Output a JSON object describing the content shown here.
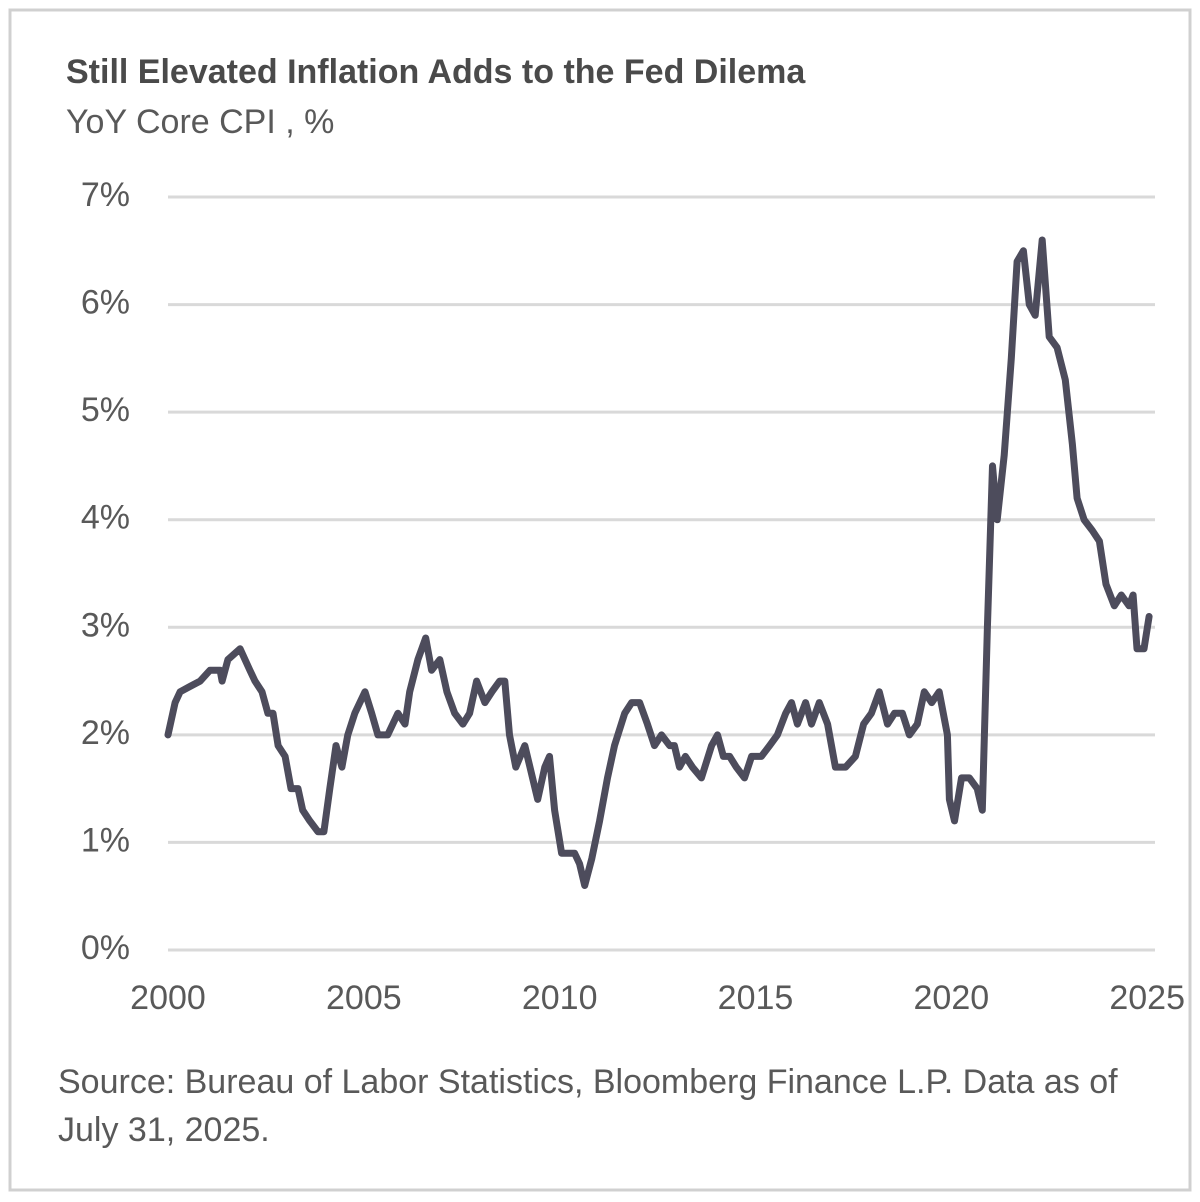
{
  "chart_data": {
    "type": "line",
    "title": "Still Elevated Inflation Adds to the Fed Dilema",
    "subtitle": "YoY Core CPI , %",
    "source": "Source: Bureau of Labor Statistics, Bloomberg Finance L.P. Data as of July 31, 2025.",
    "x": [
      2000,
      2000.18,
      2000.31,
      2000.56,
      2000.82,
      2001.07,
      2001.33,
      2001.38,
      2001.53,
      2001.84,
      2002.09,
      2002.22,
      2002.4,
      2002.55,
      2002.68,
      2002.81,
      2002.99,
      2003.14,
      2003.32,
      2003.44,
      2003.62,
      2003.83,
      2003.98,
      2004.13,
      2004.29,
      2004.44,
      2004.59,
      2004.77,
      2005.03,
      2005.2,
      2005.36,
      2005.61,
      2005.87,
      2006.05,
      2006.17,
      2006.38,
      2006.58,
      2006.73,
      2006.94,
      2007.12,
      2007.32,
      2007.53,
      2007.7,
      2007.88,
      2008.09,
      2008.27,
      2008.47,
      2008.6,
      2008.72,
      2008.88,
      2009.11,
      2009.44,
      2009.62,
      2009.74,
      2009.87,
      2010.05,
      2010.38,
      2010.51,
      2010.64,
      2010.82,
      2011.02,
      2011.22,
      2011.4,
      2011.66,
      2011.84,
      2012.04,
      2012.24,
      2012.42,
      2012.6,
      2012.81,
      2012.93,
      2013.06,
      2013.21,
      2013.39,
      2013.62,
      2013.88,
      2014.03,
      2014.18,
      2014.34,
      2014.51,
      2014.72,
      2014.9,
      2015.15,
      2015.36,
      2015.56,
      2015.77,
      2015.92,
      2016.07,
      2016.28,
      2016.43,
      2016.63,
      2016.84,
      2017.04,
      2017.3,
      2017.55,
      2017.76,
      2017.96,
      2018.16,
      2018.37,
      2018.55,
      2018.75,
      2018.93,
      2019.13,
      2019.31,
      2019.5,
      2019.69,
      2019.9,
      2019.95,
      2020.08,
      2020.26,
      2020.46,
      2020.66,
      2020.79,
      2020.92,
      2021.05,
      2021.17,
      2021.35,
      2021.53,
      2021.68,
      2021.84,
      2021.99,
      2022.14,
      2022.32,
      2022.5,
      2022.7,
      2022.91,
      2023.09,
      2023.21,
      2023.39,
      2023.6,
      2023.78,
      2023.95,
      2024.16,
      2024.34,
      2024.54,
      2024.64,
      2024.74,
      2024.92,
      2025.05
    ],
    "values": [
      2.0,
      2.3,
      2.4,
      2.45,
      2.5,
      2.6,
      2.6,
      2.5,
      2.7,
      2.8,
      2.6,
      2.5,
      2.4,
      2.2,
      2.2,
      1.9,
      1.8,
      1.5,
      1.5,
      1.3,
      1.2,
      1.1,
      1.1,
      1.5,
      1.9,
      1.7,
      2.0,
      2.2,
      2.4,
      2.2,
      2.0,
      2.0,
      2.2,
      2.1,
      2.4,
      2.7,
      2.9,
      2.6,
      2.7,
      2.4,
      2.2,
      2.1,
      2.2,
      2.5,
      2.3,
      2.4,
      2.5,
      2.5,
      2.0,
      1.7,
      1.9,
      1.4,
      1.7,
      1.8,
      1.3,
      0.9,
      0.9,
      0.8,
      0.6,
      0.85,
      1.2,
      1.6,
      1.9,
      2.2,
      2.3,
      2.3,
      2.1,
      1.9,
      2.0,
      1.9,
      1.9,
      1.7,
      1.8,
      1.7,
      1.6,
      1.9,
      2.0,
      1.8,
      1.8,
      1.7,
      1.6,
      1.8,
      1.8,
      1.9,
      2.0,
      2.2,
      2.3,
      2.1,
      2.3,
      2.1,
      2.3,
      2.1,
      1.7,
      1.7,
      1.8,
      2.1,
      2.2,
      2.4,
      2.1,
      2.2,
      2.2,
      2.0,
      2.1,
      2.4,
      2.3,
      2.4,
      2.0,
      1.4,
      1.2,
      1.6,
      1.6,
      1.5,
      1.3,
      3.0,
      4.5,
      4.0,
      4.6,
      5.5,
      6.4,
      6.5,
      6.0,
      5.9,
      6.6,
      5.7,
      5.6,
      5.3,
      4.7,
      4.2,
      4.0,
      3.9,
      3.8,
      3.4,
      3.2,
      3.3,
      3.2,
      3.3,
      2.8,
      2.8,
      3.1
    ],
    "color": "#4d4c5c",
    "xlim": [
      2000,
      2025.2
    ],
    "xticks": [
      2000,
      2005,
      2010,
      2015,
      2020,
      2025
    ],
    "ylim": [
      0,
      7
    ],
    "yticks": [
      {
        "value": 0,
        "label": "0%"
      },
      {
        "value": 1,
        "label": "1%"
      },
      {
        "value": 2,
        "label": "2%"
      },
      {
        "value": 3,
        "label": "3%"
      },
      {
        "value": 4,
        "label": "4%"
      },
      {
        "value": 5,
        "label": "5%"
      },
      {
        "value": 6,
        "label": "6%"
      },
      {
        "value": 7,
        "label": "7%"
      }
    ],
    "grid": true
  }
}
